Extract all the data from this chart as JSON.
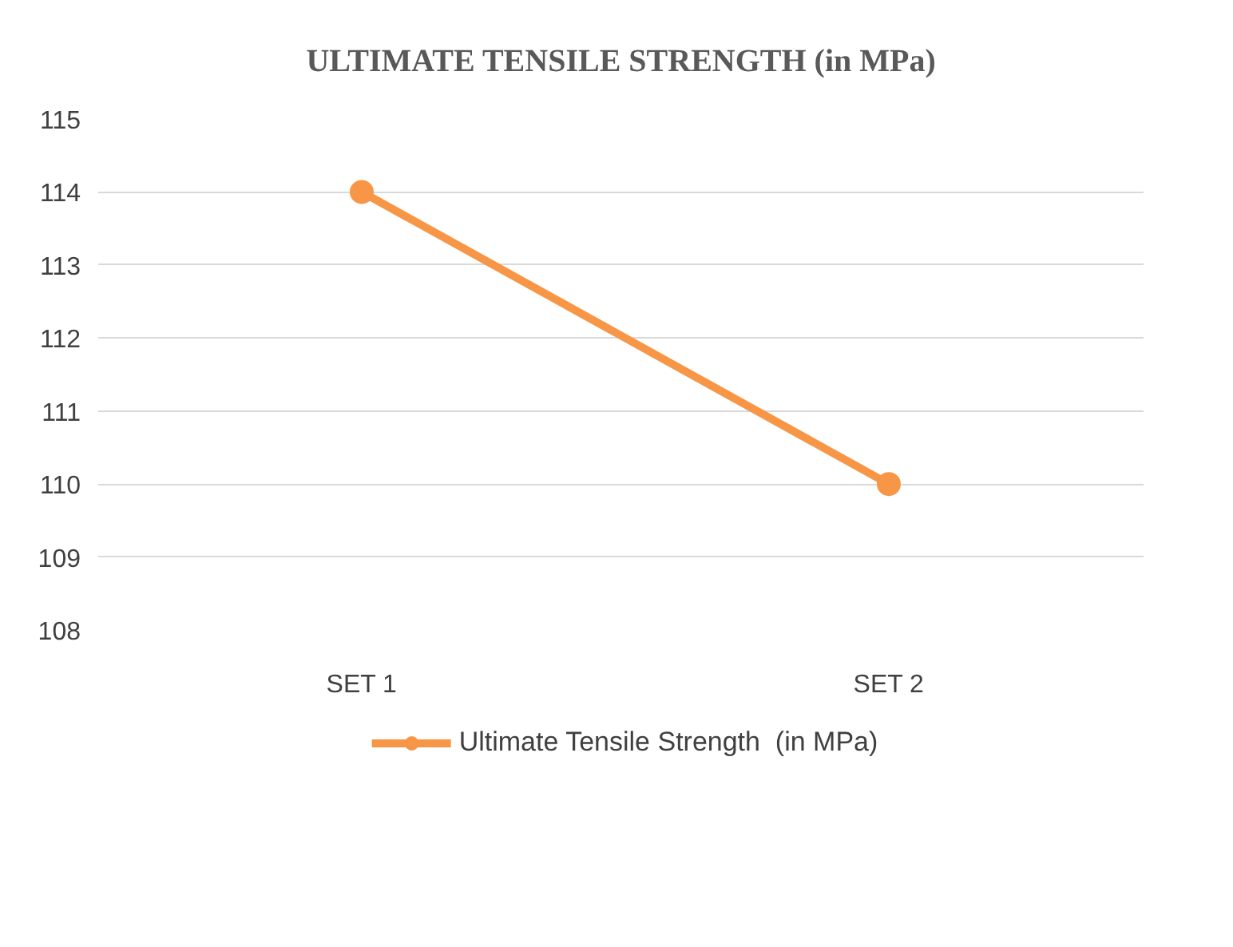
{
  "chart_data": {
    "type": "line",
    "title": "ULTIMATE TENSILE STRENGTH  (in MPa)",
    "categories": [
      "SET 1",
      "SET 2"
    ],
    "series": [
      {
        "name": "Ultimate Tensile Strength  (in MPa)",
        "color": "#f79646",
        "values": [
          114,
          110
        ]
      }
    ],
    "ylim": [
      108,
      115
    ],
    "yticks": [
      108,
      109,
      110,
      111,
      112,
      113,
      114,
      115
    ],
    "grid": "y",
    "legend": "bottom",
    "marker": "circle",
    "line_style": "solid"
  }
}
